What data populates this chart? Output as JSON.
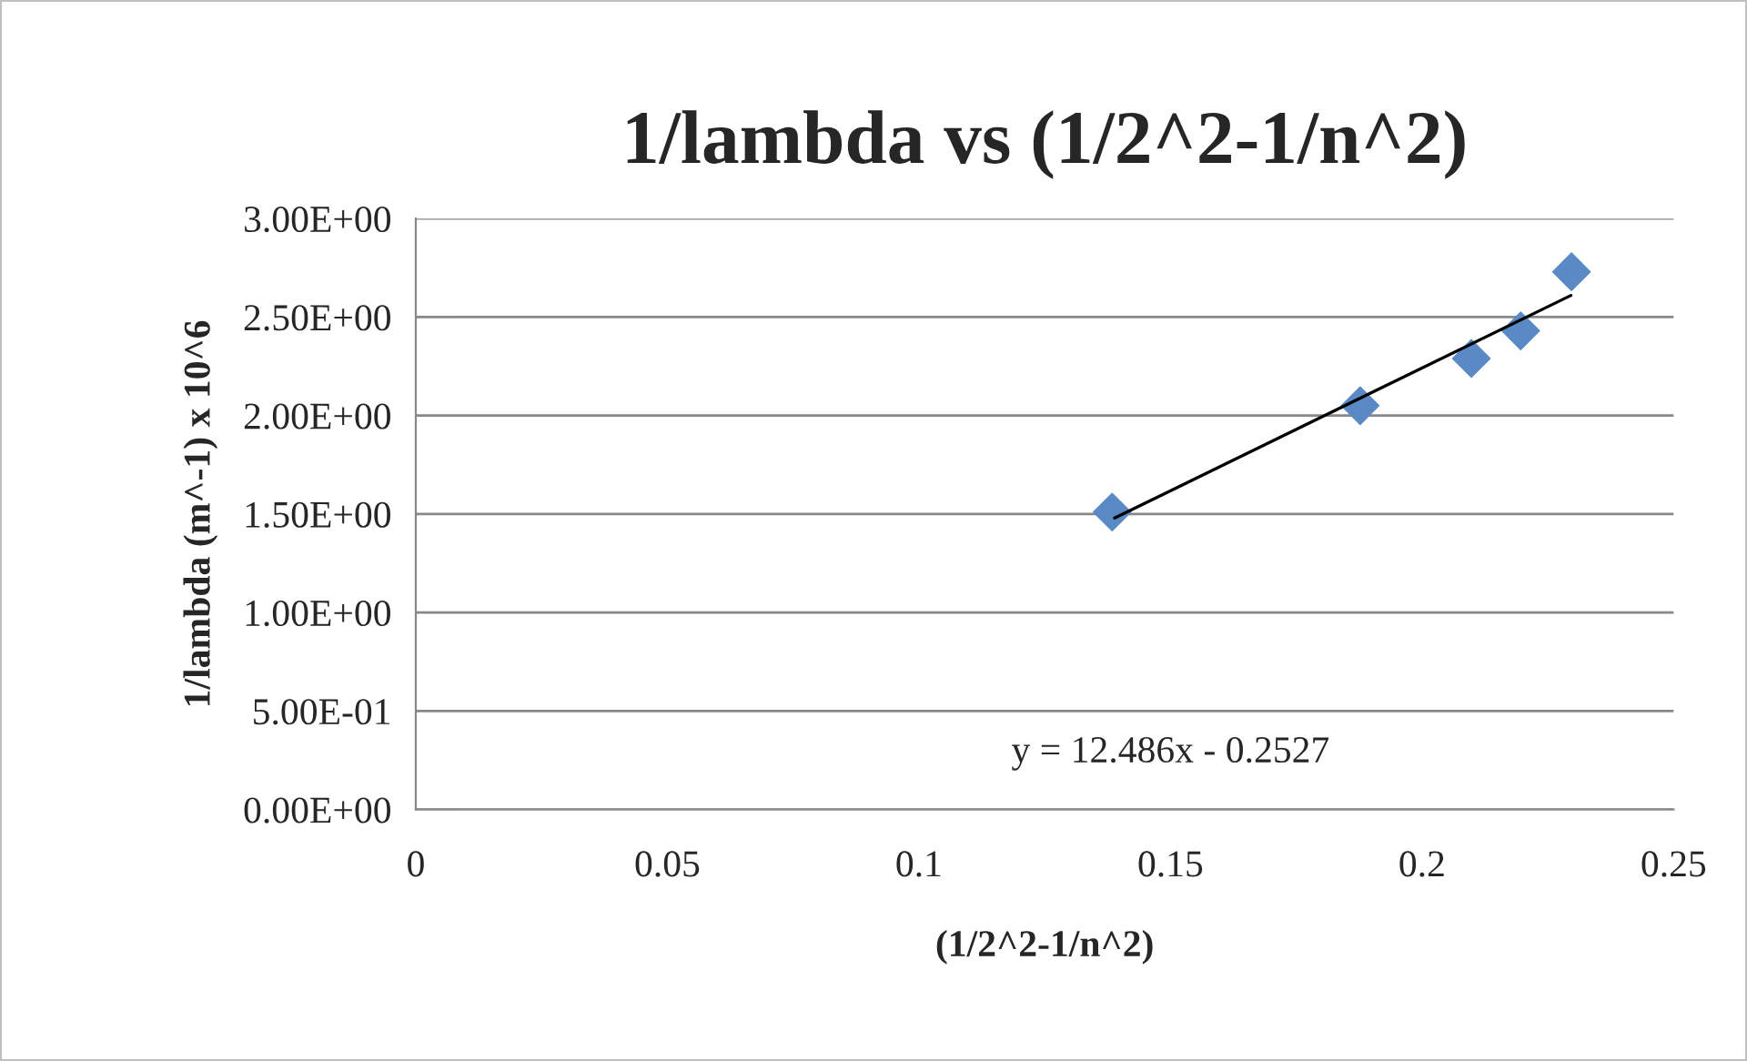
{
  "chart_data": {
    "type": "scatter",
    "title": "1/lambda vs (1/2^2-1/n^2)",
    "xlabel": "(1/2^2-1/n^2)",
    "ylabel": "1/lambda (m^-1) x 10^6",
    "series": [
      {
        "color": "#5a8ac6",
        "marker": "diamond",
        "x": [
          0.1384,
          0.1877,
          0.2098,
          0.2196,
          0.2297
        ],
        "values": [
          1.51,
          2.05,
          2.29,
          2.43,
          2.73
        ]
      },
      {
        "type": "line",
        "color": "#000000",
        "marker": "none",
        "line_style": "solid",
        "x": [
          0.1389,
          0.2296
        ],
        "values": [
          1.48,
          2.61
        ]
      }
    ],
    "annotations": [
      "y = 12.486x - 0.2527"
    ],
    "xlim": [
      0,
      0.25
    ],
    "xticks": [
      0,
      0.05,
      0.1,
      0.15,
      0.2,
      0.25
    ],
    "ylim": [
      0,
      3
    ],
    "yticks": [
      {
        "value": 0,
        "label": "0.00E+00"
      },
      {
        "value": 0.5,
        "label": "5.00E-01"
      },
      {
        "value": 1,
        "label": "1.00E+00"
      },
      {
        "value": 1.5,
        "label": "1.50E+00"
      },
      {
        "value": 2,
        "label": "2.00E+00"
      },
      {
        "value": 2.5,
        "label": "2.50E+00"
      },
      {
        "value": 3,
        "label": "3.00E+00"
      }
    ],
    "grid": "y",
    "legend": false
  }
}
